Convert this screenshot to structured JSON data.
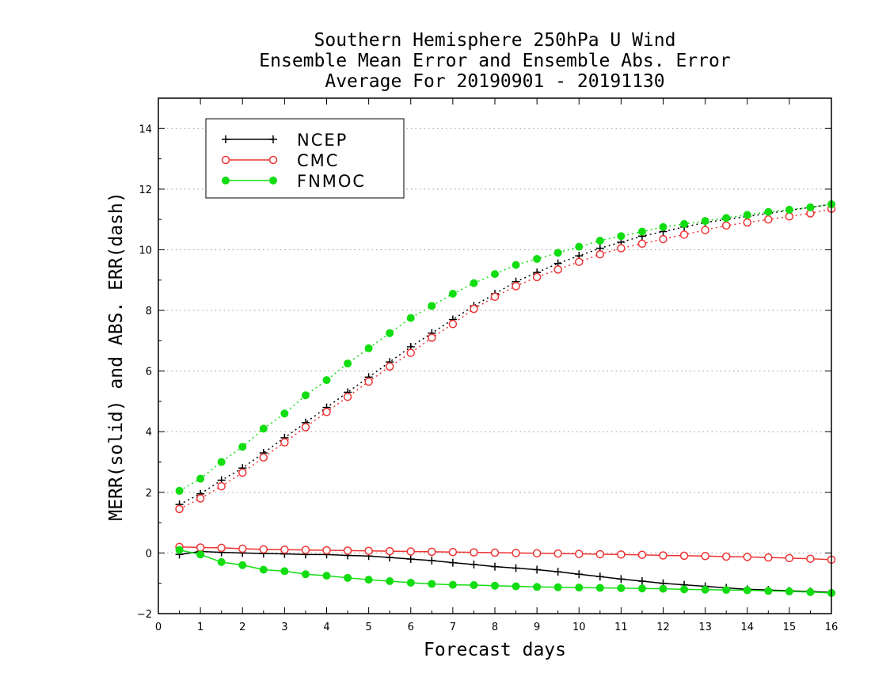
{
  "chart_data": {
    "type": "line",
    "title_lines": [
      "Southern Hemisphere 250hPa U Wind",
      "Ensemble Mean Error and Ensemble Abs. Error",
      "Average For 20190901 - 20191130"
    ],
    "xlabel": "Forecast days",
    "ylabel": "MERR(solid) and ABS. ERR(dash)",
    "xlim": [
      0,
      16
    ],
    "ylim": [
      -2,
      15
    ],
    "x_ticks": [
      0,
      1,
      2,
      3,
      4,
      5,
      6,
      7,
      8,
      9,
      10,
      11,
      12,
      13,
      14,
      15,
      16
    ],
    "y_ticks": [
      -2,
      0,
      2,
      4,
      6,
      8,
      10,
      12,
      14
    ],
    "grid": "dotted-horizontal",
    "legend_position": "top-left",
    "x": [
      0.5,
      1,
      1.5,
      2,
      2.5,
      3,
      3.5,
      4,
      4.5,
      5,
      5.5,
      6,
      6.5,
      7,
      7.5,
      8,
      8.5,
      9,
      9.5,
      10,
      10.5,
      11,
      11.5,
      12,
      12.5,
      13,
      13.5,
      14,
      14.5,
      15,
      15.5,
      16
    ],
    "series": [
      {
        "name": "NCEP",
        "color": "#000000",
        "marker": "plus",
        "merr": [
          -0.05,
          0.05,
          0.02,
          0.0,
          -0.02,
          -0.03,
          -0.05,
          -0.05,
          -0.08,
          -0.1,
          -0.15,
          -0.2,
          -0.25,
          -0.32,
          -0.38,
          -0.45,
          -0.5,
          -0.55,
          -0.62,
          -0.7,
          -0.78,
          -0.86,
          -0.93,
          -1.0,
          -1.05,
          -1.1,
          -1.15,
          -1.2,
          -1.22,
          -1.25,
          -1.27,
          -1.3
        ],
        "abs_err": [
          1.6,
          1.95,
          2.4,
          2.8,
          3.3,
          3.8,
          4.3,
          4.8,
          5.3,
          5.8,
          6.3,
          6.8,
          7.25,
          7.7,
          8.15,
          8.55,
          8.95,
          9.25,
          9.55,
          9.8,
          10.05,
          10.25,
          10.45,
          10.6,
          10.75,
          10.9,
          11.0,
          11.1,
          11.2,
          11.3,
          11.4,
          11.5
        ]
      },
      {
        "name": "CMC",
        "color": "#ee3333",
        "marker": "open-circle",
        "merr": [
          0.2,
          0.18,
          0.17,
          0.14,
          0.12,
          0.11,
          0.1,
          0.09,
          0.08,
          0.07,
          0.06,
          0.05,
          0.04,
          0.03,
          0.02,
          0.01,
          0.0,
          -0.01,
          -0.02,
          -0.03,
          -0.04,
          -0.05,
          -0.06,
          -0.08,
          -0.09,
          -0.1,
          -0.12,
          -0.13,
          -0.15,
          -0.17,
          -0.19,
          -0.22
        ],
        "abs_err": [
          1.45,
          1.8,
          2.2,
          2.65,
          3.15,
          3.65,
          4.15,
          4.65,
          5.15,
          5.65,
          6.15,
          6.6,
          7.1,
          7.55,
          8.05,
          8.45,
          8.8,
          9.1,
          9.35,
          9.6,
          9.85,
          10.05,
          10.2,
          10.35,
          10.5,
          10.65,
          10.8,
          10.9,
          11.0,
          11.1,
          11.2,
          11.35
        ]
      },
      {
        "name": "FNMOC",
        "color": "#11dd11",
        "marker": "filled-circle",
        "merr": [
          0.1,
          -0.05,
          -0.3,
          -0.4,
          -0.55,
          -0.6,
          -0.7,
          -0.75,
          -0.82,
          -0.88,
          -0.93,
          -0.98,
          -1.02,
          -1.05,
          -1.06,
          -1.08,
          -1.1,
          -1.12,
          -1.13,
          -1.14,
          -1.15,
          -1.16,
          -1.17,
          -1.18,
          -1.2,
          -1.21,
          -1.22,
          -1.23,
          -1.25,
          -1.27,
          -1.29,
          -1.32
        ],
        "abs_err": [
          2.05,
          2.45,
          3.0,
          3.5,
          4.1,
          4.6,
          5.2,
          5.7,
          6.25,
          6.75,
          7.25,
          7.75,
          8.15,
          8.55,
          8.9,
          9.2,
          9.5,
          9.7,
          9.9,
          10.1,
          10.3,
          10.45,
          10.6,
          10.75,
          10.85,
          10.95,
          11.05,
          11.15,
          11.25,
          11.32,
          11.4,
          11.5
        ]
      }
    ]
  }
}
